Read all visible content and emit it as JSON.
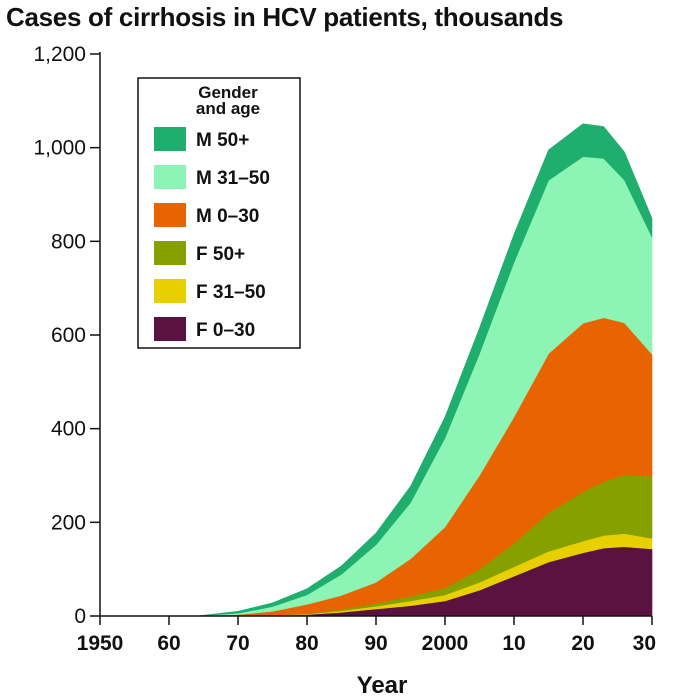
{
  "chart_data": {
    "type": "area",
    "stacked": true,
    "title": "Cases of cirrhosis in HCV patients, thousands",
    "xlabel": "Year",
    "ylabel": "",
    "xlim": [
      1950,
      2030
    ],
    "ylim": [
      0,
      1200
    ],
    "x_ticks": [
      1950,
      1960,
      1970,
      1980,
      1990,
      2000,
      2010,
      2020,
      2030
    ],
    "x_tick_labels": [
      "1950",
      "60",
      "70",
      "80",
      "90",
      "2000",
      "10",
      "20",
      "30"
    ],
    "y_ticks": [
      0,
      200,
      400,
      600,
      800,
      1000,
      1200
    ],
    "y_tick_labels": [
      "0",
      "200",
      "400",
      "600",
      "800",
      "1,000",
      "1,200"
    ],
    "grid": false,
    "legend": {
      "title_lines": [
        "Gender",
        "and age"
      ],
      "placement": "top-left"
    },
    "x": [
      1950,
      1960,
      1964,
      1970,
      1975,
      1980,
      1985,
      1990,
      1995,
      2000,
      2005,
      2010,
      2015,
      2020,
      2023,
      2026,
      2030
    ],
    "series": [
      {
        "name": "F 0–30",
        "color": "#5a1240",
        "values": [
          0,
          0,
          0,
          0,
          1,
          3,
          8,
          15,
          22,
          32,
          55,
          85,
          115,
          135,
          145,
          148,
          143
        ]
      },
      {
        "name": "F 31–50",
        "color": "#e8cf00",
        "values": [
          0,
          0,
          0,
          0,
          0,
          1,
          3,
          6,
          10,
          13,
          17,
          20,
          23,
          25,
          27,
          28,
          23
        ]
      },
      {
        "name": "F 50+",
        "color": "#86a000",
        "values": [
          0,
          0,
          0,
          0,
          1,
          1,
          3,
          6,
          10,
          15,
          28,
          50,
          82,
          105,
          115,
          125,
          133
        ]
      },
      {
        "name": "M 0–30",
        "color": "#e86400",
        "values": [
          0,
          0,
          0,
          3,
          8,
          20,
          30,
          45,
          80,
          130,
          200,
          270,
          340,
          360,
          350,
          325,
          260
        ]
      },
      {
        "name": "M 31–50",
        "color": "#8cf4b4",
        "values": [
          0,
          0,
          0,
          3,
          10,
          20,
          45,
          80,
          120,
          190,
          260,
          330,
          370,
          356,
          340,
          305,
          250
        ]
      },
      {
        "name": "M 50+",
        "color": "#1fae6e",
        "values": [
          0,
          0,
          0,
          4,
          8,
          13,
          18,
          25,
          35,
          45,
          55,
          60,
          65,
          70,
          68,
          60,
          40
        ]
      }
    ],
    "legend_order": [
      "M 50+",
      "M 31–50",
      "M 0–30",
      "F 50+",
      "F 31–50",
      "F 0–30"
    ]
  }
}
